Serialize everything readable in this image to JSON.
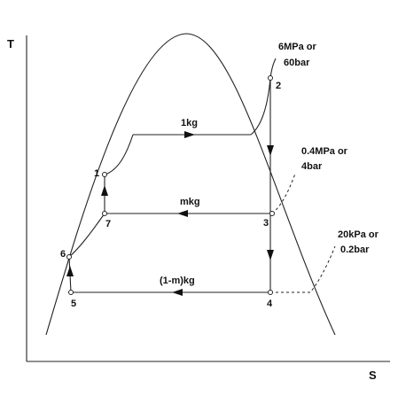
{
  "axes": {
    "y_label": "T",
    "x_label": "S"
  },
  "points": [
    "1",
    "2",
    "3",
    "4",
    "5",
    "6",
    "7"
  ],
  "flows": [
    "1kg",
    "mkg",
    "(1-m)kg"
  ],
  "pressures": [
    {
      "line1": "6MPa or",
      "line2": "60bar"
    },
    {
      "line1": "0.4MPa or",
      "line2": "4bar"
    },
    {
      "line1": "20kPa or",
      "line2": "0.2bar"
    }
  ]
}
